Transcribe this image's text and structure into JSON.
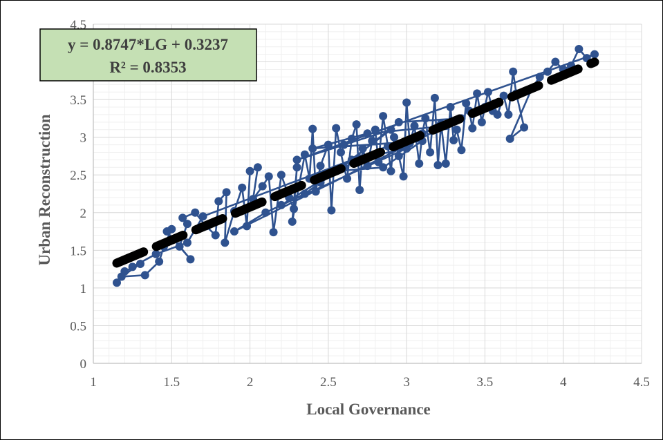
{
  "chart_data": {
    "type": "scatter",
    "title": "",
    "xlabel": "Local Governance",
    "ylabel": "Urban Reconstruction",
    "xlim": [
      1,
      4.5
    ],
    "ylim": [
      0,
      4.5
    ],
    "x_ticks": [
      "1",
      "1.5",
      "2",
      "2.5",
      "3",
      "3.5",
      "4",
      "4.5"
    ],
    "y_ticks": [
      "0",
      "0.5",
      "1",
      "1.5",
      "2",
      "2.5",
      "3",
      "3.5",
      "4",
      "4.5"
    ],
    "grid": true,
    "series_color": "#2f528f",
    "trendline_color": "#000000",
    "annotation_fill": "#c5e0b4",
    "annotation": {
      "equation": "y = 0.8747*LG + 0.3237",
      "r_squared": "R² = 0.8353"
    },
    "trendline": {
      "slope": 0.8747,
      "intercept": 0.3237,
      "x_range": [
        1.15,
        4.2
      ]
    },
    "series": [
      {
        "points": [
          [
            1.15,
            1.07
          ],
          [
            1.2,
            1.22
          ],
          [
            1.3,
            1.32
          ],
          [
            1.18,
            1.15
          ],
          [
            1.33,
            1.17
          ],
          [
            1.42,
            1.35
          ],
          [
            1.45,
            1.55
          ],
          [
            1.5,
            1.78
          ],
          [
            1.47,
            1.75
          ],
          [
            1.62,
            1.38
          ],
          [
            1.55,
            1.55
          ],
          [
            1.6,
            1.85
          ],
          [
            1.57,
            1.93
          ],
          [
            1.65,
            2.0
          ],
          [
            1.72,
            1.82
          ],
          [
            1.78,
            1.7
          ],
          [
            1.8,
            2.15
          ],
          [
            1.85,
            2.27
          ],
          [
            1.84,
            1.6
          ],
          [
            1.9,
            2.02
          ],
          [
            1.95,
            2.33
          ],
          [
            1.98,
            1.82
          ],
          [
            2.0,
            2.55
          ],
          [
            2.05,
            2.6
          ],
          [
            2.02,
            2.18
          ],
          [
            2.08,
            2.35
          ],
          [
            2.12,
            2.48
          ],
          [
            2.15,
            1.74
          ],
          [
            2.2,
            2.5
          ],
          [
            2.25,
            2.2
          ],
          [
            2.28,
            2.05
          ],
          [
            2.3,
            2.6
          ],
          [
            2.27,
            1.88
          ],
          [
            2.35,
            2.77
          ],
          [
            2.38,
            2.45
          ],
          [
            2.4,
            3.11
          ],
          [
            2.42,
            2.28
          ],
          [
            2.45,
            2.62
          ],
          [
            2.5,
            2.9
          ],
          [
            2.52,
            2.03
          ],
          [
            2.55,
            3.12
          ],
          [
            2.58,
            2.8
          ],
          [
            2.6,
            2.6
          ],
          [
            2.62,
            2.45
          ],
          [
            2.65,
            2.98
          ],
          [
            2.68,
            3.17
          ],
          [
            2.7,
            2.3
          ],
          [
            2.72,
            2.85
          ],
          [
            2.75,
            2.62
          ],
          [
            2.78,
            2.95
          ],
          [
            2.8,
            3.1
          ],
          [
            2.82,
            2.67
          ],
          [
            2.85,
            3.28
          ],
          [
            2.88,
            2.88
          ],
          [
            2.9,
            2.55
          ],
          [
            2.92,
            3.0
          ],
          [
            2.95,
            2.75
          ],
          [
            2.98,
            2.48
          ],
          [
            3.0,
            3.46
          ],
          [
            3.02,
            2.92
          ],
          [
            3.05,
            3.15
          ],
          [
            3.08,
            2.65
          ],
          [
            3.1,
            3.05
          ],
          [
            3.12,
            3.25
          ],
          [
            3.15,
            2.8
          ],
          [
            3.18,
            3.52
          ],
          [
            3.2,
            2.63
          ],
          [
            3.22,
            3.18
          ],
          [
            3.25,
            2.65
          ],
          [
            3.28,
            3.4
          ],
          [
            3.3,
            2.96
          ],
          [
            3.32,
            3.1
          ],
          [
            3.35,
            2.83
          ],
          [
            3.38,
            3.45
          ],
          [
            3.4,
            3.35
          ],
          [
            3.42,
            3.12
          ],
          [
            3.45,
            3.58
          ],
          [
            3.48,
            3.2
          ],
          [
            3.5,
            3.4
          ],
          [
            3.52,
            3.6
          ],
          [
            3.55,
            3.35
          ],
          [
            3.58,
            3.3
          ],
          [
            3.62,
            3.55
          ],
          [
            3.65,
            3.3
          ],
          [
            3.68,
            3.87
          ],
          [
            3.7,
            3.58
          ],
          [
            3.75,
            3.13
          ],
          [
            3.66,
            2.98
          ],
          [
            3.8,
            3.65
          ],
          [
            3.85,
            3.8
          ],
          [
            3.9,
            3.87
          ],
          [
            3.95,
            4.0
          ],
          [
            4.0,
            3.9
          ],
          [
            4.05,
            3.95
          ],
          [
            4.1,
            4.17
          ],
          [
            4.15,
            4.05
          ],
          [
            4.2,
            4.1
          ],
          [
            2.3,
            2.7
          ],
          [
            2.6,
            2.9
          ],
          [
            2.9,
            3.1
          ],
          [
            2.45,
            2.4
          ],
          [
            2.7,
            2.72
          ],
          [
            3.0,
            2.85
          ],
          [
            2.2,
            2.1
          ],
          [
            2.55,
            2.55
          ],
          [
            2.85,
            2.6
          ],
          [
            3.1,
            2.95
          ],
          [
            2.4,
            2.85
          ],
          [
            2.75,
            3.05
          ],
          [
            3.25,
            3.15
          ],
          [
            1.9,
            1.75
          ],
          [
            2.1,
            2.0
          ],
          [
            2.35,
            2.25
          ],
          [
            2.65,
            2.7
          ],
          [
            2.95,
            3.2
          ],
          [
            3.35,
            3.25
          ],
          [
            1.7,
            1.95
          ],
          [
            1.6,
            1.6
          ],
          [
            1.4,
            1.45
          ],
          [
            1.25,
            1.28
          ]
        ]
      }
    ]
  }
}
